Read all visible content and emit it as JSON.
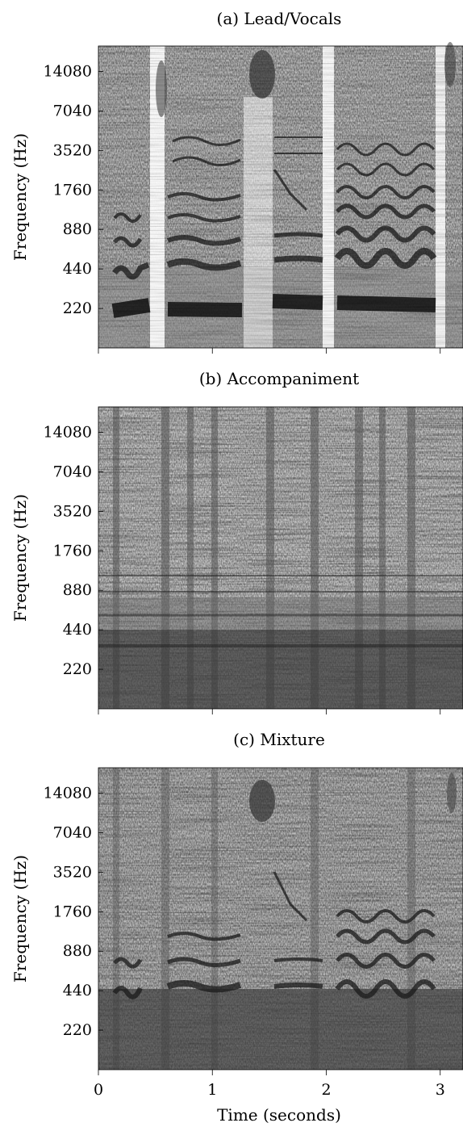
{
  "chart_data": [
    {
      "type": "heatmap",
      "title": "(a) Lead/Vocals",
      "ylabel": "Frequency (Hz)",
      "xlabel": "",
      "y_scale": "log",
      "xlim": [
        0,
        3.2
      ],
      "ylim": [
        110,
        22000
      ],
      "yticks": [
        220,
        440,
        880,
        1760,
        3520,
        7040,
        14080
      ],
      "yticklabels": [
        "220",
        "440",
        "880",
        "1760",
        "3520",
        "7040",
        "14080"
      ],
      "xticks": [
        0,
        1,
        2,
        3
      ],
      "xticklabels": [],
      "colormap": "grayscale (dark = high magnitude)"
    },
    {
      "type": "heatmap",
      "title": "(b) Accompaniment",
      "ylabel": "Frequency (Hz)",
      "xlabel": "",
      "y_scale": "log",
      "xlim": [
        0,
        3.2
      ],
      "ylim": [
        110,
        22000
      ],
      "yticks": [
        220,
        440,
        880,
        1760,
        3520,
        7040,
        14080
      ],
      "yticklabels": [
        "220",
        "440",
        "880",
        "1760",
        "3520",
        "7040",
        "14080"
      ],
      "xticks": [
        0,
        1,
        2,
        3
      ],
      "xticklabels": [],
      "colormap": "grayscale (dark = high magnitude)"
    },
    {
      "type": "heatmap",
      "title": "(c) Mixture",
      "ylabel": "Frequency (Hz)",
      "xlabel": "Time (seconds)",
      "y_scale": "log",
      "xlim": [
        0,
        3.2
      ],
      "ylim": [
        110,
        22000
      ],
      "yticks": [
        220,
        440,
        880,
        1760,
        3520,
        7040,
        14080
      ],
      "yticklabels": [
        "220",
        "440",
        "880",
        "1760",
        "3520",
        "7040",
        "14080"
      ],
      "xticks": [
        0,
        1,
        2,
        3
      ],
      "xticklabels": [
        "0",
        "1",
        "2",
        "3"
      ],
      "colormap": "grayscale (dark = high magnitude)"
    }
  ]
}
